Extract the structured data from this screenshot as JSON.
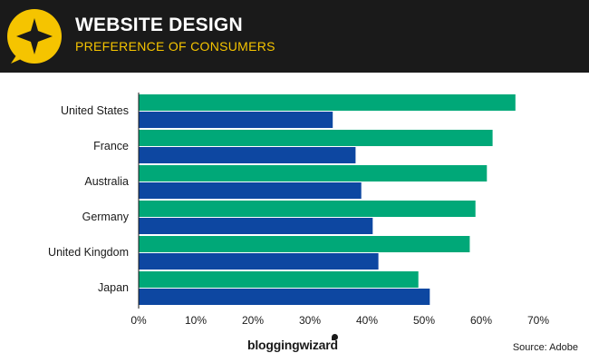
{
  "header": {
    "title": "WEBSITE DESIGN",
    "subtitle": "PREFERENCE OF CONSUMERS",
    "icon": "star-speech-bubble-icon"
  },
  "footer": {
    "brand": "bloggingwizard",
    "source": "Source: Adobe"
  },
  "colors": {
    "header_bg": "#1a1a1a",
    "accent_yellow": "#f5c400",
    "series_green": "#00a878",
    "series_blue": "#0d47a1"
  },
  "chart_data": {
    "type": "bar",
    "orientation": "horizontal",
    "categories": [
      "United States",
      "France",
      "Australia",
      "Germany",
      "United Kingdom",
      "Japan"
    ],
    "series": [
      {
        "values": [
          66,
          62,
          61,
          59,
          58,
          49
        ]
      },
      {
        "values": [
          34,
          38,
          39,
          41,
          42,
          51
        ]
      }
    ],
    "xlim": [
      0,
      70
    ],
    "x_ticks": [
      "0%",
      "10%",
      "20%",
      "30%",
      "40%",
      "50%",
      "60%",
      "70%"
    ],
    "grid": false,
    "legend": "none"
  }
}
